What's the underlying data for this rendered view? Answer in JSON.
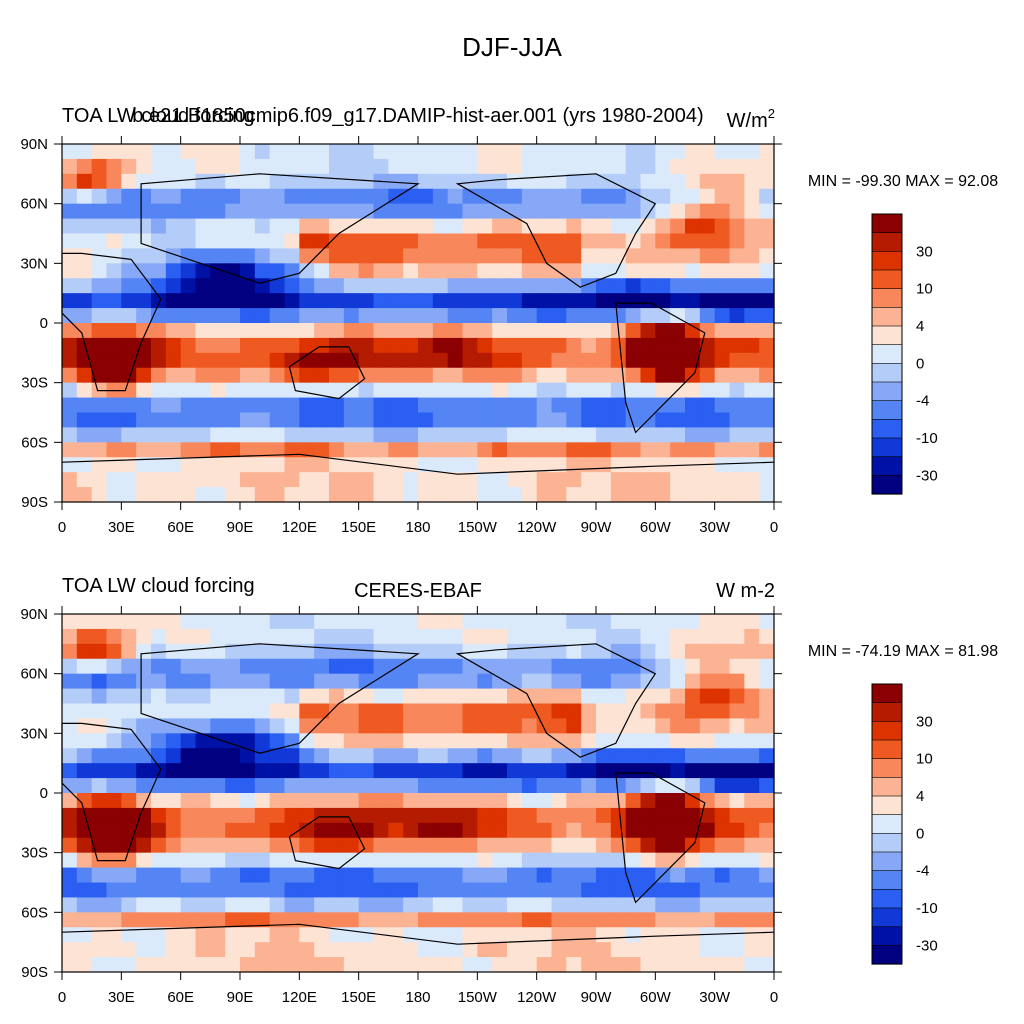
{
  "figure_title": "DJF-JJA",
  "panels": [
    {
      "id": "model",
      "left_title": "TOA LW cloud forcing",
      "center_title": "b.e21.B1850cmip6.f09_g17.DAMIP-hist-aer.001 (yrs 1980-2004)",
      "units_base": "W/m",
      "units_exp": "2",
      "units_plain": "",
      "minmax": "MIN = -99.30 MAX =  92.08"
    },
    {
      "id": "obs",
      "left_title": "TOA LW cloud forcing",
      "center_title": "CERES-EBAF",
      "units_base": "",
      "units_exp": "",
      "units_plain": "W m-2",
      "minmax": "MIN = -74.19 MAX =  81.98"
    }
  ],
  "chart_data": [
    {
      "type": "heatmap",
      "title": "DJF-JJA",
      "subtitle": "b.e21.B1850cmip6.f09_g17.DAMIP-hist-aer.001 (yrs 1980-2004)",
      "variable": "TOA LW cloud forcing",
      "units": "W/m2",
      "x_ticks": [
        "0",
        "30E",
        "60E",
        "90E",
        "120E",
        "150E",
        "180",
        "150W",
        "120W",
        "90W",
        "60W",
        "30W",
        "0"
      ],
      "y_ticks": [
        "90N",
        "60N",
        "30N",
        "0",
        "30S",
        "60S",
        "90S"
      ],
      "xlim": [
        0,
        360
      ],
      "ylim": [
        -90,
        90
      ],
      "min": -99.3,
      "max": 92.08,
      "colorbar_levels": [
        -50,
        -40,
        -30,
        -20,
        -15,
        -10,
        -8,
        -6,
        -4,
        -2,
        -1,
        0,
        1,
        2,
        4,
        6,
        8,
        10,
        15,
        20,
        30,
        40,
        50
      ],
      "colorbar_labels": [
        "30",
        "10",
        "4",
        "0",
        "-4",
        "-10",
        "-30"
      ]
    },
    {
      "type": "heatmap",
      "title": "DJF-JJA",
      "subtitle": "CERES-EBAF",
      "variable": "TOA LW cloud forcing",
      "units": "W m-2",
      "x_ticks": [
        "0",
        "30E",
        "60E",
        "90E",
        "120E",
        "150E",
        "180",
        "150W",
        "120W",
        "90W",
        "60W",
        "30W",
        "0"
      ],
      "y_ticks": [
        "90N",
        "60N",
        "30N",
        "0",
        "30S",
        "60S",
        "90S"
      ],
      "xlim": [
        0,
        360
      ],
      "ylim": [
        -90,
        90
      ],
      "min": -74.19,
      "max": 81.98,
      "colorbar_levels": [
        -50,
        -40,
        -30,
        -20,
        -15,
        -10,
        -8,
        -6,
        -4,
        -2,
        -1,
        0,
        1,
        2,
        4,
        6,
        8,
        10,
        15,
        20,
        30,
        40,
        50
      ],
      "colorbar_labels": [
        "30",
        "10",
        "4",
        "0",
        "-4",
        "-10",
        "-30"
      ]
    }
  ],
  "colors": {
    "colorbar": [
      "#8b0000",
      "#b51b00",
      "#dd3300",
      "#ef5a22",
      "#f9875c",
      "#fbb394",
      "#fde3d3",
      "#dbeafb",
      "#b4cdf8",
      "#86a8f6",
      "#5585f5",
      "#2a5ff2",
      "#1039d8",
      "#0012a5",
      "#000080"
    ],
    "ocean_neutral": "#fde3d3"
  }
}
